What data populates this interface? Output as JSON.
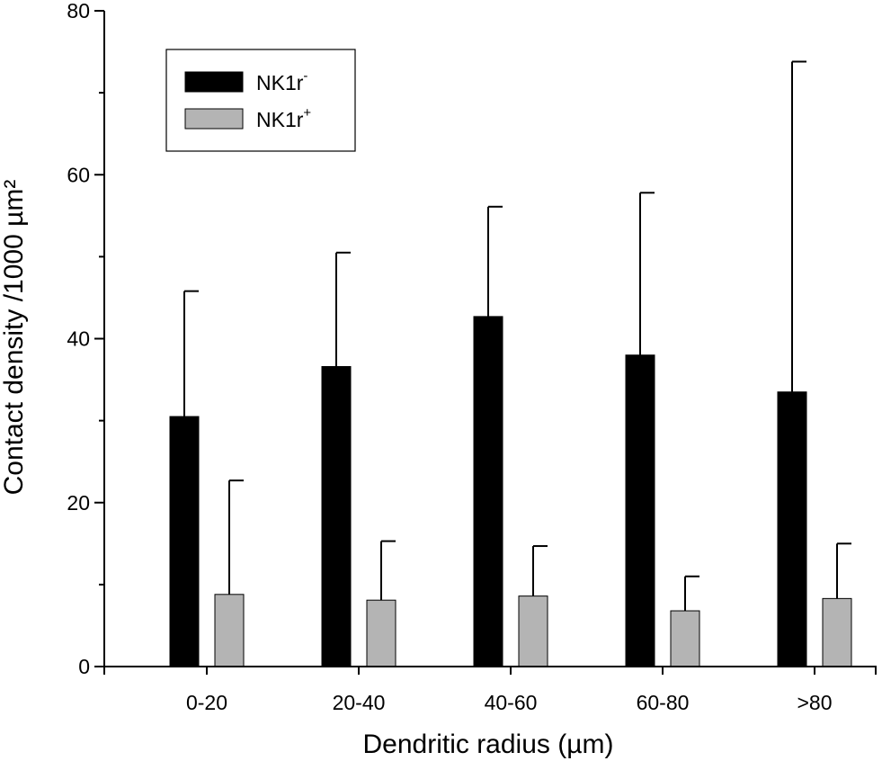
{
  "chart_data": {
    "type": "bar",
    "title": "",
    "xlabel": "Dendritic radius (µm)",
    "ylabel": "Contact density /1000 µm²",
    "ylim": [
      0,
      80
    ],
    "yticks": [
      "0",
      "20",
      "40",
      "60",
      "80"
    ],
    "categories": [
      "0-20",
      "20-40",
      "40-60",
      "60-80",
      ">80"
    ],
    "series": [
      {
        "name": "NK1r⁻",
        "legend_base": "NK1r",
        "legend_sup": "-",
        "color": "#000000",
        "values": [
          30.5,
          36.6,
          42.7,
          38.0,
          33.5
        ],
        "error_upper": [
          45.8,
          50.5,
          56.1,
          57.8,
          73.8
        ]
      },
      {
        "name": "NK1r⁺",
        "legend_base": "NK1r",
        "legend_sup": "+",
        "color": "#b4b4b4",
        "values": [
          8.8,
          8.1,
          8.6,
          6.8,
          8.3
        ],
        "error_upper": [
          22.7,
          15.3,
          14.7,
          11.0,
          15.0
        ]
      }
    ],
    "grid": false,
    "legend_position": "top-left"
  }
}
